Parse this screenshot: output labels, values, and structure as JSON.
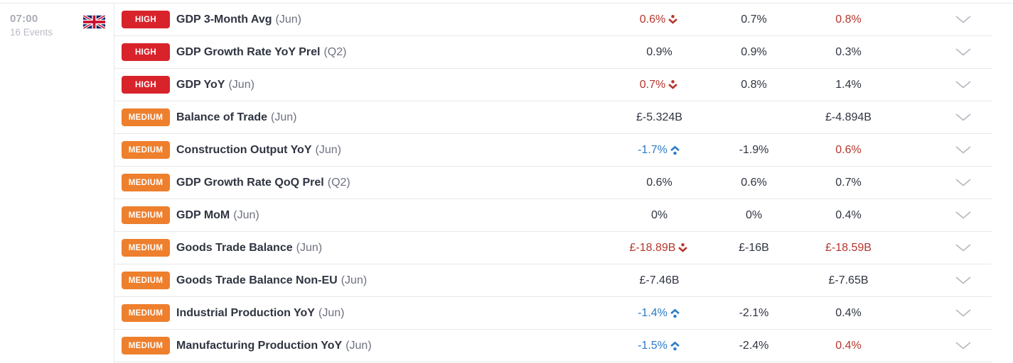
{
  "time_group": {
    "time": "07:00",
    "event_count": "16 Events",
    "flag_icon": "uk-flag-icon",
    "country": "United Kingdom"
  },
  "icons": {
    "trend_up": "trend-up-arrow-icon",
    "trend_down": "trend-down-arrow-icon",
    "expand": "chevron-down-icon",
    "flag": "uk-flag-icon"
  },
  "colors": {
    "high": "#d8232a",
    "medium": "#ee7f2d",
    "red": "#b5362e",
    "blue": "#2e7bc6",
    "text": "#2f3441",
    "muted": "#6e7280",
    "border": "#e7e8ec",
    "chevron": "#b6b9c0",
    "time_gray": "#a9adb5",
    "count_gray": "#b9bcc3",
    "badge_text": "#ffffff"
  },
  "rows": [
    {
      "importance": "HIGH",
      "name": "GDP 3-Month Avg",
      "period": "(Jun)",
      "actual": "0.6%",
      "actual_color": "red",
      "actual_trend": "down",
      "consensus": "0.7%",
      "previous": "0.8%",
      "previous_color": "red"
    },
    {
      "importance": "HIGH",
      "name": "GDP Growth Rate YoY Prel",
      "period": "(Q2)",
      "actual": "0.9%",
      "actual_color": "default",
      "actual_trend": null,
      "consensus": "0.9%",
      "previous": "0.3%",
      "previous_color": "default"
    },
    {
      "importance": "HIGH",
      "name": "GDP YoY",
      "period": "(Jun)",
      "actual": "0.7%",
      "actual_color": "red",
      "actual_trend": "down",
      "consensus": "0.8%",
      "previous": "1.4%",
      "previous_color": "default"
    },
    {
      "importance": "MEDIUM",
      "name": "Balance of Trade",
      "period": "(Jun)",
      "actual": "£-5.324B",
      "actual_color": "default",
      "actual_trend": null,
      "consensus": "",
      "previous": "£-4.894B",
      "previous_color": "default"
    },
    {
      "importance": "MEDIUM",
      "name": "Construction Output YoY",
      "period": "(Jun)",
      "actual": "-1.7%",
      "actual_color": "blue",
      "actual_trend": "up",
      "consensus": "-1.9%",
      "previous": "0.6%",
      "previous_color": "red"
    },
    {
      "importance": "MEDIUM",
      "name": "GDP Growth Rate QoQ Prel",
      "period": "(Q2)",
      "actual": "0.6%",
      "actual_color": "default",
      "actual_trend": null,
      "consensus": "0.6%",
      "previous": "0.7%",
      "previous_color": "default"
    },
    {
      "importance": "MEDIUM",
      "name": "GDP MoM",
      "period": "(Jun)",
      "actual": "0%",
      "actual_color": "default",
      "actual_trend": null,
      "consensus": "0%",
      "previous": "0.4%",
      "previous_color": "default"
    },
    {
      "importance": "MEDIUM",
      "name": "Goods Trade Balance",
      "period": "(Jun)",
      "actual": "£-18.89B",
      "actual_color": "red",
      "actual_trend": "down",
      "consensus": "£-16B",
      "previous": "£-18.59B",
      "previous_color": "red"
    },
    {
      "importance": "MEDIUM",
      "name": "Goods Trade Balance Non-EU",
      "period": "(Jun)",
      "actual": "£-7.46B",
      "actual_color": "default",
      "actual_trend": null,
      "consensus": "",
      "previous": "£-7.65B",
      "previous_color": "default"
    },
    {
      "importance": "MEDIUM",
      "name": "Industrial Production YoY",
      "period": "(Jun)",
      "actual": "-1.4%",
      "actual_color": "blue",
      "actual_trend": "up",
      "consensus": "-2.1%",
      "previous": "0.4%",
      "previous_color": "default"
    },
    {
      "importance": "MEDIUM",
      "name": "Manufacturing Production YoY",
      "period": "(Jun)",
      "actual": "-1.5%",
      "actual_color": "blue",
      "actual_trend": "up",
      "consensus": "-2.4%",
      "previous": "0.4%",
      "previous_color": "red"
    }
  ]
}
